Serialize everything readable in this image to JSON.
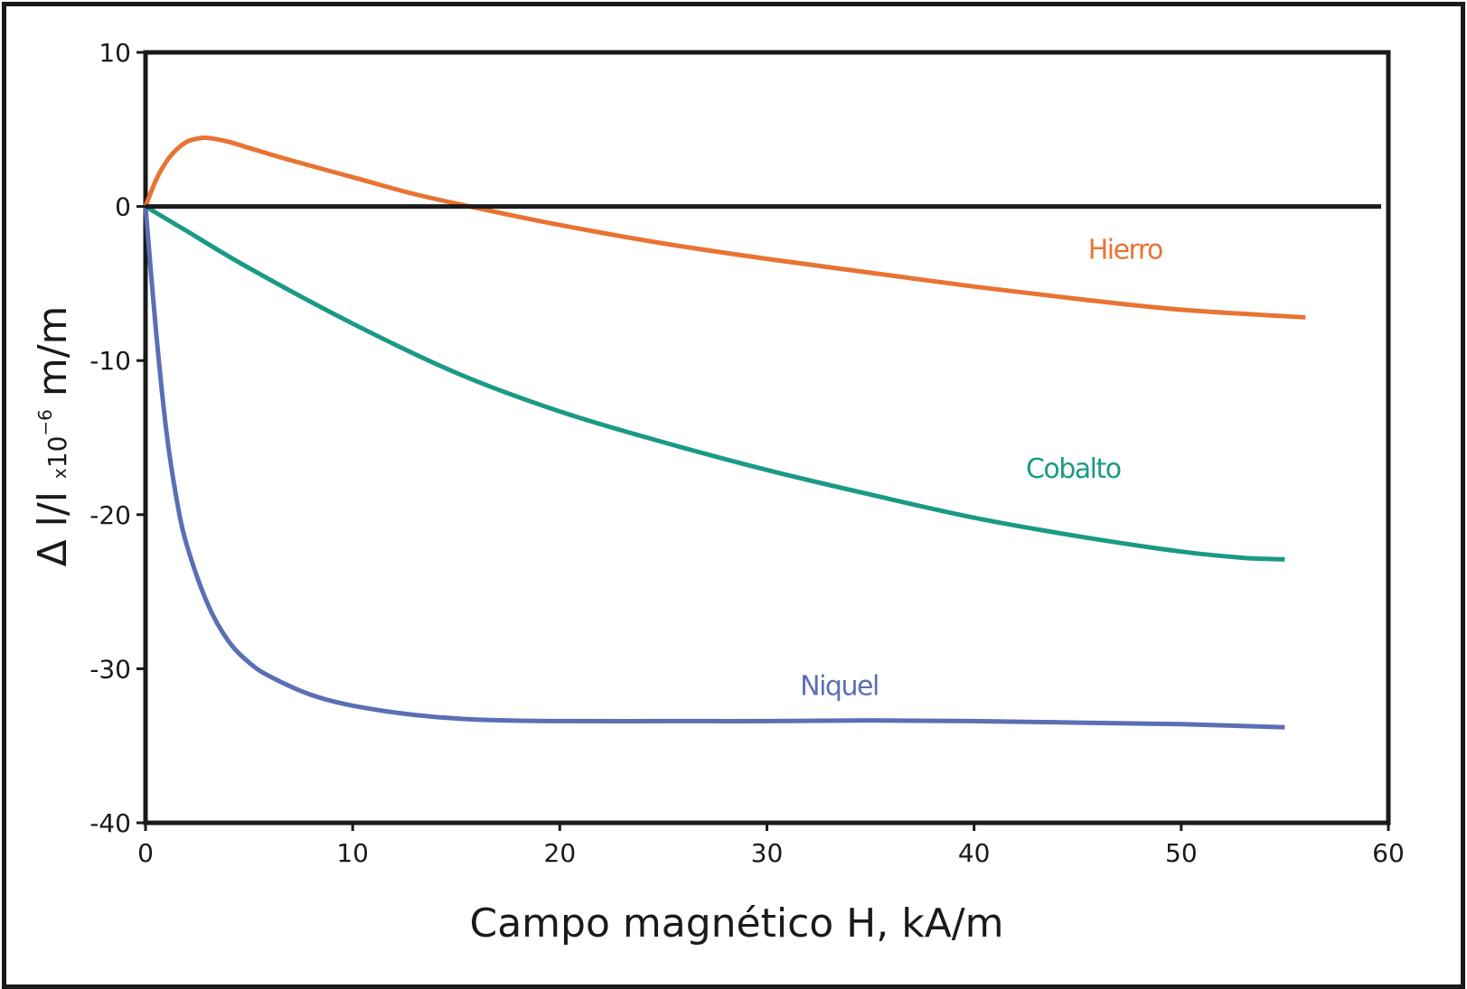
{
  "chart_data": {
    "type": "line",
    "xlabel": "Campo magnético H, kA/m",
    "ylabel": {
      "main": "Δ l/l ",
      "mult": "x",
      "base": "10",
      "exp": "−6",
      "unit": " m/m"
    },
    "xlim": [
      0,
      60
    ],
    "ylim": [
      -40,
      10
    ],
    "xticks": [
      "0",
      "10",
      "20",
      "30",
      "40",
      "50",
      "60"
    ],
    "yticks": [
      "10",
      "0",
      "-10",
      "-20",
      "-30",
      "-40"
    ],
    "xtick_values": [
      0,
      10,
      20,
      30,
      40,
      50,
      60
    ],
    "ytick_values": [
      10,
      0,
      -10,
      -20,
      -30,
      -40
    ],
    "zero_line": true,
    "grid": false,
    "series": [
      {
        "name": "Hierro",
        "color": "#e87332",
        "label_anchor": [
          45.5,
          -3.4
        ],
        "points": [
          [
            0,
            0
          ],
          [
            0.5,
            1.7
          ],
          [
            1,
            2.9
          ],
          [
            1.5,
            3.7
          ],
          [
            2,
            4.2
          ],
          [
            2.5,
            4.4
          ],
          [
            3,
            4.45
          ],
          [
            4,
            4.2
          ],
          [
            5,
            3.8
          ],
          [
            7,
            3.0
          ],
          [
            10,
            1.9
          ],
          [
            13,
            0.8
          ],
          [
            16,
            -0.1
          ],
          [
            20,
            -1.2
          ],
          [
            25,
            -2.4
          ],
          [
            30,
            -3.4
          ],
          [
            35,
            -4.3
          ],
          [
            40,
            -5.2
          ],
          [
            45,
            -6.0
          ],
          [
            50,
            -6.7
          ],
          [
            56,
            -7.2
          ]
        ]
      },
      {
        "name": "Cobalto",
        "color": "#1a9a84",
        "label_anchor": [
          42.5,
          -17.6
        ],
        "points": [
          [
            0,
            0
          ],
          [
            2,
            -1.6
          ],
          [
            5,
            -4.0
          ],
          [
            10,
            -7.6
          ],
          [
            15,
            -10.8
          ],
          [
            20,
            -13.3
          ],
          [
            25,
            -15.3
          ],
          [
            30,
            -17.1
          ],
          [
            35,
            -18.7
          ],
          [
            40,
            -20.2
          ],
          [
            45,
            -21.4
          ],
          [
            50,
            -22.4
          ],
          [
            53,
            -22.8
          ],
          [
            55,
            -22.9
          ]
        ]
      },
      {
        "name": "Niquel",
        "color": "#5a6fb4",
        "label_anchor": [
          31.6,
          -31.7
        ],
        "points": [
          [
            0,
            0
          ],
          [
            0.5,
            -8
          ],
          [
            1,
            -14.5
          ],
          [
            1.5,
            -19
          ],
          [
            2,
            -22
          ],
          [
            3,
            -25.8
          ],
          [
            4,
            -28.2
          ],
          [
            5,
            -29.6
          ],
          [
            6,
            -30.5
          ],
          [
            8,
            -31.7
          ],
          [
            10,
            -32.4
          ],
          [
            13,
            -33.0
          ],
          [
            16,
            -33.3
          ],
          [
            20,
            -33.4
          ],
          [
            25,
            -33.4
          ],
          [
            30,
            -33.4
          ],
          [
            35,
            -33.35
          ],
          [
            40,
            -33.4
          ],
          [
            45,
            -33.5
          ],
          [
            50,
            -33.6
          ],
          [
            55,
            -33.8
          ]
        ]
      }
    ]
  }
}
